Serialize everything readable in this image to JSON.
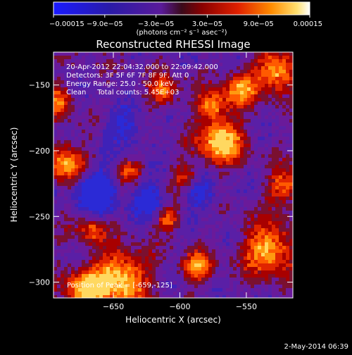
{
  "chart_data": {
    "type": "heatmap",
    "title": "Reconstructed RHESSI Image",
    "xlabel": "Heliocentric X (arcsec)",
    "ylabel": "Heliocentric Y (arcsec)",
    "xlim": [
      -695,
      -515
    ],
    "ylim": [
      -312,
      -125
    ],
    "xticks": [
      -650,
      -600,
      -550
    ],
    "xtick_labels": [
      "−650",
      "−600",
      "−550"
    ],
    "yticks": [
      -150,
      -200,
      -250,
      -300
    ],
    "ytick_labels": [
      "−150",
      "−200",
      "−250",
      "−300"
    ],
    "colorbar": {
      "min": -0.00015,
      "max": 0.00015,
      "ticks": [
        -0.00015,
        -9e-05,
        -3e-05,
        3e-05,
        9e-05,
        0.00015
      ],
      "tick_labels": [
        "−0.00015",
        "−9.0e−05",
        "−3.0e−05",
        "3.0e−05",
        "9.0e−05",
        "0.00015"
      ],
      "unit_label": "(photons cm⁻² s⁻¹ asec⁻²)"
    },
    "annotations": [
      "20-Apr-2012 22:04:32.000 to 22:09:42.000",
      "Detectors: 3F 5F 6F 7F 8F 9F, Att 0",
      "Energy Range: 25.0 - 50.0 keV",
      "Clean     Total counts: 5.45E+03"
    ],
    "peak_label": "Position of Peak = [-659,-125]",
    "grid": false
  },
  "footer_date": "2-May-2014 06:39",
  "colors": {
    "background": "#000000",
    "axis": "#ffffff"
  }
}
